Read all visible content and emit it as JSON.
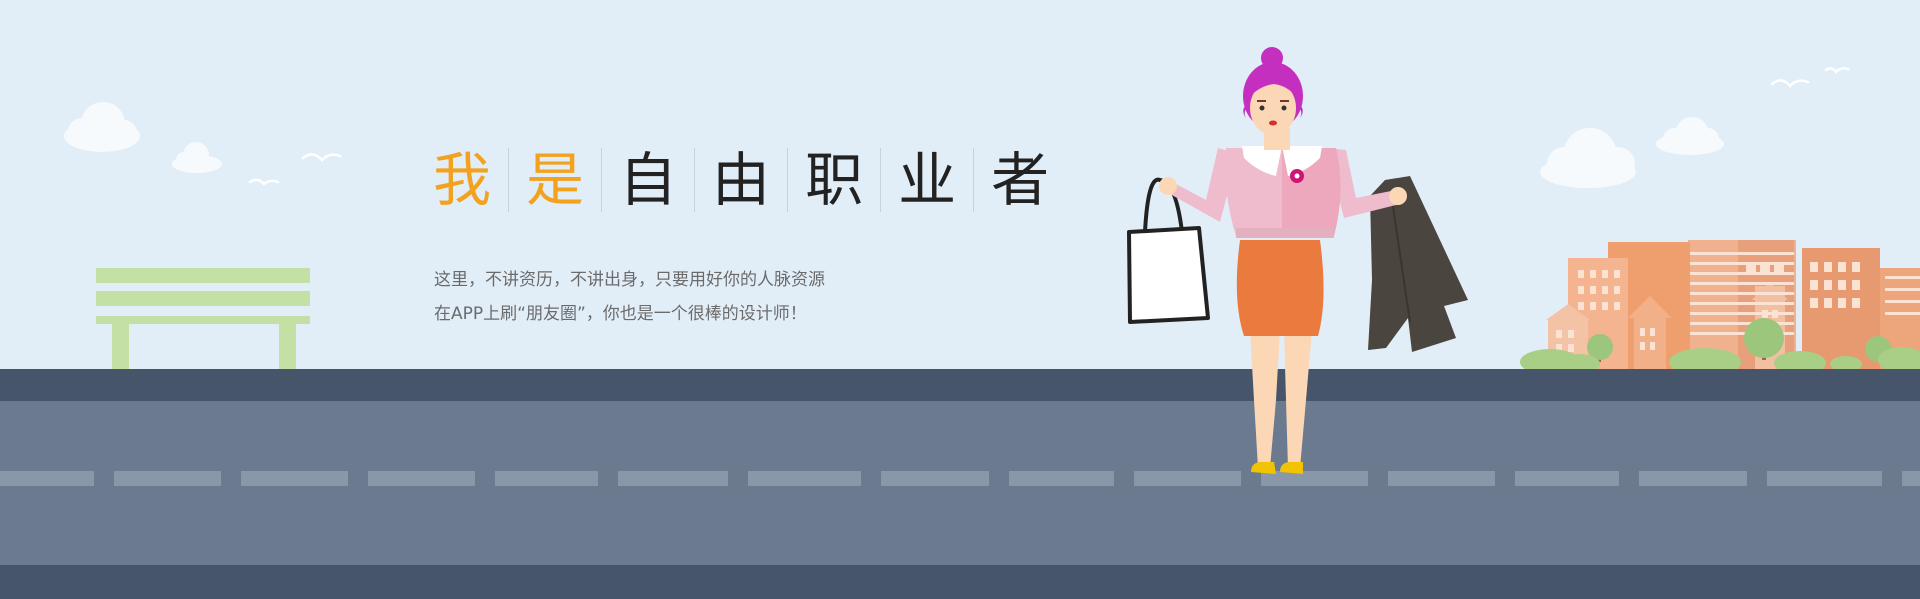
{
  "headline": {
    "chars": [
      "我",
      "是",
      "自",
      "由",
      "职",
      "业",
      "者"
    ]
  },
  "description": {
    "line1": "这里，不讲资历，不讲出身，只要用好你的人脉资源",
    "line2": "在APP上刷“朋友圈”，你也是一个很棒的设计师！"
  },
  "colors": {
    "sky": "#e2eef7",
    "accent": "#f3a21f",
    "road": "#6c7a8f",
    "road_edge": "#46556a",
    "bench": "#c5e0a5",
    "buildings": "#eda57b",
    "hair": "#c42fbf",
    "skirt": "#ea7a3e",
    "blouse": "#eebccc"
  },
  "icons": [
    "cloud-icon",
    "bird-icon",
    "bench-icon",
    "woman-illustration",
    "shopping-bag-icon",
    "jacket-icon",
    "city-buildings-icon",
    "tree-icon"
  ]
}
